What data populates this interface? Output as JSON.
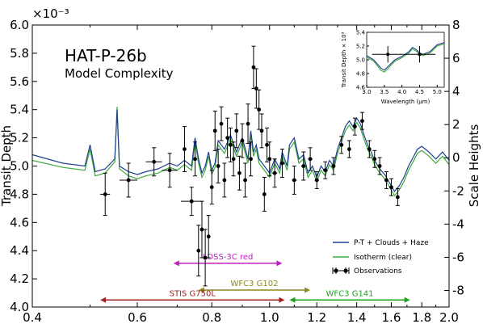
{
  "chart_data": {
    "type": "line",
    "title": "HAT-P-26b",
    "subtitle": "Model Complexity",
    "xscale": "log",
    "xlim": [
      0.4,
      2.0
    ],
    "ylim": [
      4.0,
      6.0
    ],
    "y_exponent_label": "×10⁻³",
    "ylabel": "Transit Depth",
    "y2label": "Scale Heights",
    "y2lim": [
      -9,
      8
    ],
    "xticks": [
      0.4,
      0.6,
      0.8,
      1.0,
      1.2,
      1.4,
      1.6,
      1.8,
      2.0
    ],
    "xtick_labels": [
      "0.4",
      "0.6",
      "0.8",
      "1.0",
      "1.2",
      "1.4",
      "1.6",
      "1.8",
      "2.0"
    ],
    "yticks": [
      4.0,
      4.2,
      4.4,
      4.6,
      4.8,
      5.0,
      5.2,
      5.4,
      5.6,
      5.8,
      6.0
    ],
    "ytick_labels": [
      "4.0",
      "4.2",
      "4.4",
      "4.6",
      "4.8",
      "5.0",
      "5.2",
      "5.4",
      "5.6",
      "5.8",
      "6.0"
    ],
    "y2ticks": [
      -8,
      -6,
      -4,
      -2,
      0,
      2,
      4,
      6,
      8
    ],
    "y2tick_labels": [
      "-8",
      "-6",
      "-4",
      "-2",
      "0",
      "2",
      "4",
      "6",
      "8"
    ],
    "legend_position": "lower-right",
    "colors": {
      "model_haze": "#1f3f8f",
      "isotherm": "#3daa3d",
      "observations": "#000000"
    },
    "series": [
      {
        "name": "P-T + Clouds + Haze",
        "x": [
          0.4,
          0.45,
          0.49,
          0.5,
          0.51,
          0.53,
          0.55,
          0.555,
          0.56,
          0.58,
          0.6,
          0.62,
          0.65,
          0.68,
          0.7,
          0.72,
          0.74,
          0.75,
          0.76,
          0.77,
          0.78,
          0.79,
          0.8,
          0.81,
          0.82,
          0.84,
          0.86,
          0.88,
          0.9,
          0.92,
          0.93,
          0.94,
          0.95,
          0.96,
          0.98,
          1.0,
          1.02,
          1.04,
          1.05,
          1.07,
          1.08,
          1.1,
          1.12,
          1.14,
          1.16,
          1.18,
          1.2,
          1.22,
          1.24,
          1.26,
          1.28,
          1.3,
          1.32,
          1.34,
          1.36,
          1.38,
          1.4,
          1.42,
          1.44,
          1.46,
          1.48,
          1.5,
          1.53,
          1.56,
          1.59,
          1.62,
          1.65,
          1.68,
          1.71,
          1.74,
          1.77,
          1.8,
          1.85,
          1.9,
          1.95,
          2.0
        ],
        "y": [
          5.08,
          5.02,
          5.0,
          5.15,
          4.96,
          4.98,
          5.05,
          5.4,
          5.0,
          4.96,
          4.94,
          4.96,
          4.98,
          5.02,
          5.0,
          5.04,
          5.0,
          5.2,
          5.05,
          4.95,
          5.0,
          5.1,
          4.97,
          5.02,
          5.18,
          5.12,
          5.22,
          5.1,
          5.2,
          5.05,
          5.25,
          5.1,
          5.15,
          5.05,
          5.0,
          4.95,
          5.05,
          4.98,
          5.1,
          5.0,
          5.15,
          5.2,
          5.05,
          5.08,
          4.95,
          5.0,
          4.92,
          5.0,
          4.96,
          5.04,
          5.0,
          5.12,
          5.2,
          5.28,
          5.32,
          5.28,
          5.34,
          5.3,
          5.22,
          5.15,
          5.1,
          5.04,
          4.98,
          4.94,
          4.88,
          4.82,
          4.86,
          4.92,
          5.0,
          5.06,
          5.12,
          5.14,
          5.1,
          5.05,
          5.1,
          5.04
        ]
      },
      {
        "name": "Isotherm (clear)",
        "x": [
          0.4,
          0.45,
          0.49,
          0.5,
          0.51,
          0.53,
          0.55,
          0.555,
          0.56,
          0.58,
          0.6,
          0.62,
          0.65,
          0.68,
          0.7,
          0.72,
          0.74,
          0.75,
          0.76,
          0.77,
          0.78,
          0.79,
          0.8,
          0.81,
          0.82,
          0.84,
          0.86,
          0.88,
          0.9,
          0.92,
          0.93,
          0.94,
          0.95,
          0.96,
          0.98,
          1.0,
          1.02,
          1.04,
          1.05,
          1.07,
          1.08,
          1.1,
          1.12,
          1.14,
          1.16,
          1.18,
          1.2,
          1.22,
          1.24,
          1.26,
          1.28,
          1.3,
          1.32,
          1.34,
          1.36,
          1.38,
          1.4,
          1.42,
          1.44,
          1.46,
          1.48,
          1.5,
          1.53,
          1.56,
          1.59,
          1.62,
          1.65,
          1.68,
          1.71,
          1.74,
          1.77,
          1.8,
          1.85,
          1.9,
          1.95,
          2.0
        ],
        "y": [
          5.04,
          4.99,
          4.97,
          5.12,
          4.93,
          4.95,
          5.03,
          5.42,
          4.98,
          4.93,
          4.91,
          4.93,
          4.95,
          4.99,
          4.97,
          5.01,
          4.97,
          5.17,
          5.02,
          4.92,
          4.97,
          5.07,
          4.94,
          4.99,
          5.15,
          5.09,
          5.19,
          5.07,
          5.17,
          5.02,
          5.22,
          5.07,
          5.12,
          5.02,
          4.97,
          4.92,
          5.02,
          4.95,
          5.07,
          4.97,
          5.12,
          5.17,
          5.02,
          5.05,
          4.92,
          4.97,
          4.89,
          4.97,
          4.93,
          5.01,
          4.97,
          5.09,
          5.17,
          5.25,
          5.29,
          5.25,
          5.31,
          5.27,
          5.19,
          5.12,
          5.07,
          5.01,
          4.95,
          4.91,
          4.85,
          4.79,
          4.83,
          4.89,
          4.97,
          5.03,
          5.09,
          5.11,
          5.07,
          5.02,
          5.07,
          5.01
        ]
      },
      {
        "name": "Observations",
        "kind": "errorbar",
        "points": [
          {
            "x": 0.53,
            "y": 4.8,
            "xerr": 0.01,
            "yerr": 0.15
          },
          {
            "x": 0.58,
            "y": 4.9,
            "xerr": 0.02,
            "yerr": 0.12
          },
          {
            "x": 0.64,
            "y": 5.03,
            "xerr": 0.02,
            "yerr": 0.1
          },
          {
            "x": 0.68,
            "y": 4.97,
            "xerr": 0.02,
            "yerr": 0.12
          },
          {
            "x": 0.72,
            "y": 5.12,
            "xerr": 0.005,
            "yerr": 0.16
          },
          {
            "x": 0.74,
            "y": 4.75,
            "xerr": 0.03,
            "yerr": 0.1
          },
          {
            "x": 0.75,
            "y": 5.05,
            "xerr": 0.005,
            "yerr": 0.12
          },
          {
            "x": 0.76,
            "y": 4.4,
            "xerr": 0.005,
            "yerr": 0.18
          },
          {
            "x": 0.77,
            "y": 4.55,
            "xerr": 0.005,
            "yerr": 0.2
          },
          {
            "x": 0.78,
            "y": 4.35,
            "xerr": 0.005,
            "yerr": 0.2
          },
          {
            "x": 0.79,
            "y": 4.5,
            "xerr": 0.005,
            "yerr": 0.15
          },
          {
            "x": 0.8,
            "y": 4.85,
            "xerr": 0.005,
            "yerr": 0.12
          },
          {
            "x": 0.81,
            "y": 5.25,
            "xerr": 0.005,
            "yerr": 0.14
          },
          {
            "x": 0.82,
            "y": 5.0,
            "xerr": 0.005,
            "yerr": 0.12
          },
          {
            "x": 0.83,
            "y": 5.3,
            "xerr": 0.005,
            "yerr": 0.12
          },
          {
            "x": 0.84,
            "y": 4.9,
            "xerr": 0.005,
            "yerr": 0.12
          },
          {
            "x": 0.85,
            "y": 5.2,
            "xerr": 0.005,
            "yerr": 0.14
          },
          {
            "x": 0.86,
            "y": 5.15,
            "xerr": 0.005,
            "yerr": 0.12
          },
          {
            "x": 0.87,
            "y": 5.05,
            "xerr": 0.005,
            "yerr": 0.12
          },
          {
            "x": 0.88,
            "y": 5.25,
            "xerr": 0.005,
            "yerr": 0.12
          },
          {
            "x": 0.89,
            "y": 4.95,
            "xerr": 0.005,
            "yerr": 0.12
          },
          {
            "x": 0.9,
            "y": 5.18,
            "xerr": 0.005,
            "yerr": 0.12
          },
          {
            "x": 0.91,
            "y": 4.9,
            "xerr": 0.005,
            "yerr": 0.12
          },
          {
            "x": 0.92,
            "y": 5.3,
            "xerr": 0.005,
            "yerr": 0.14
          },
          {
            "x": 0.93,
            "y": 5.05,
            "xerr": 0.005,
            "yerr": 0.12
          },
          {
            "x": 0.94,
            "y": 5.7,
            "xerr": 0.005,
            "yerr": 0.15
          },
          {
            "x": 0.95,
            "y": 5.55,
            "xerr": 0.005,
            "yerr": 0.14
          },
          {
            "x": 0.96,
            "y": 5.4,
            "xerr": 0.005,
            "yerr": 0.14
          },
          {
            "x": 0.97,
            "y": 5.25,
            "xerr": 0.005,
            "yerr": 0.12
          },
          {
            "x": 0.98,
            "y": 4.8,
            "xerr": 0.005,
            "yerr": 0.12
          },
          {
            "x": 0.99,
            "y": 5.15,
            "xerr": 0.005,
            "yerr": 0.12
          },
          {
            "x": 1.0,
            "y": 5.05,
            "xerr": 0.005,
            "yerr": 0.12
          },
          {
            "x": 1.02,
            "y": 4.95,
            "xerr": 0.01,
            "yerr": 0.1
          },
          {
            "x": 1.05,
            "y": 5.02,
            "xerr": 0.01,
            "yerr": 0.1
          },
          {
            "x": 1.1,
            "y": 4.9,
            "xerr": 0.01,
            "yerr": 0.1
          },
          {
            "x": 1.14,
            "y": 5.0,
            "xerr": 0.01,
            "yerr": 0.1
          },
          {
            "x": 1.17,
            "y": 5.05,
            "xerr": 0.01,
            "yerr": 0.08
          },
          {
            "x": 1.2,
            "y": 4.9,
            "xerr": 0.01,
            "yerr": 0.06
          },
          {
            "x": 1.24,
            "y": 4.97,
            "xerr": 0.01,
            "yerr": 0.06
          },
          {
            "x": 1.28,
            "y": 5.0,
            "xerr": 0.01,
            "yerr": 0.06
          },
          {
            "x": 1.32,
            "y": 5.15,
            "xerr": 0.01,
            "yerr": 0.06
          },
          {
            "x": 1.36,
            "y": 5.12,
            "xerr": 0.01,
            "yerr": 0.06
          },
          {
            "x": 1.39,
            "y": 5.28,
            "xerr": 0.01,
            "yerr": 0.06
          },
          {
            "x": 1.43,
            "y": 5.32,
            "xerr": 0.01,
            "yerr": 0.06
          },
          {
            "x": 1.47,
            "y": 5.12,
            "xerr": 0.01,
            "yerr": 0.06
          },
          {
            "x": 1.5,
            "y": 5.05,
            "xerr": 0.01,
            "yerr": 0.06
          },
          {
            "x": 1.53,
            "y": 5.0,
            "xerr": 0.01,
            "yerr": 0.06
          },
          {
            "x": 1.57,
            "y": 4.9,
            "xerr": 0.01,
            "yerr": 0.06
          },
          {
            "x": 1.6,
            "y": 4.85,
            "xerr": 0.01,
            "yerr": 0.06
          },
          {
            "x": 1.64,
            "y": 4.78,
            "xerr": 0.01,
            "yerr": 0.06
          }
        ]
      }
    ],
    "instrument_ranges": [
      {
        "label": "LDSS-3C red",
        "x": [
          0.69,
          1.05
        ],
        "y": 4.31,
        "color": "#c020c0"
      },
      {
        "label": "WFC3 G102",
        "x": [
          0.76,
          1.17
        ],
        "y": 4.12,
        "color": "#8a8a20"
      },
      {
        "label": "STIS G750L",
        "x": [
          0.52,
          1.06
        ],
        "y": 4.05,
        "color": "#a02020"
      },
      {
        "label": "WFC3 G141",
        "x": [
          1.08,
          1.72
        ],
        "y": 4.05,
        "color": "#20a020"
      }
    ],
    "inset": {
      "xlabel": "Wavelength (μm)",
      "ylabel": "Transit Depth × 10³",
      "xlim": [
        3.0,
        5.2
      ],
      "ylim": [
        4.6,
        5.4
      ],
      "xticks": [
        3.0,
        3.5,
        4.0,
        4.5,
        5.0
      ],
      "xtick_labels": [
        "3.0",
        "3.5",
        "4.0",
        "4.5",
        "5.0"
      ],
      "yticks": [
        4.6,
        4.8,
        5.0,
        5.2,
        5.4
      ],
      "ytick_labels": [
        "4.6",
        "4.8",
        "5.0",
        "5.2",
        "5.4"
      ],
      "model_haze": {
        "x": [
          3.0,
          3.2,
          3.4,
          3.5,
          3.6,
          3.8,
          4.0,
          4.2,
          4.3,
          4.4,
          4.5,
          4.6,
          4.8,
          5.0,
          5.2
        ],
        "y": [
          5.06,
          5.0,
          4.88,
          4.85,
          4.9,
          5.0,
          5.05,
          5.12,
          5.18,
          5.15,
          5.1,
          5.08,
          5.12,
          5.22,
          5.25
        ]
      },
      "isotherm": {
        "x": [
          3.0,
          3.2,
          3.4,
          3.5,
          3.6,
          3.8,
          4.0,
          4.2,
          4.3,
          4.4,
          4.5,
          4.6,
          4.8,
          5.0,
          5.2
        ],
        "y": [
          5.04,
          4.98,
          4.85,
          4.82,
          4.87,
          4.98,
          5.03,
          5.1,
          5.16,
          5.13,
          5.08,
          5.06,
          5.1,
          5.2,
          5.23
        ]
      },
      "points": [
        {
          "x": 3.6,
          "y": 5.08,
          "xerr": 0.45,
          "yerr": 0.12
        },
        {
          "x": 4.5,
          "y": 5.08,
          "xerr": 0.45,
          "yerr": 0.12
        }
      ]
    }
  }
}
